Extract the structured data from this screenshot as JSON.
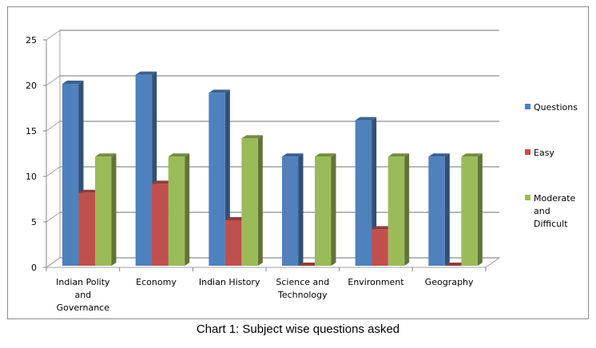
{
  "caption": "Chart 1: Subject wise questions asked",
  "chart_data": {
    "type": "bar",
    "title": "",
    "xlabel": "",
    "ylabel": "",
    "ylim": [
      0,
      25
    ],
    "yticks": [
      "0",
      "5",
      "10",
      "15",
      "20",
      "25"
    ],
    "grid": true,
    "legend_position": "right",
    "categories": [
      [
        "Indian Polity",
        "and",
        "Governance"
      ],
      [
        "Economy"
      ],
      [
        "Indian History"
      ],
      [
        "Science and",
        "Technology"
      ],
      [
        "Environment"
      ],
      [
        "Geography"
      ]
    ],
    "series": [
      {
        "name": "Questions",
        "color": "#4f81bd",
        "values": [
          20,
          21,
          19,
          12,
          16,
          12
        ]
      },
      {
        "name": "Easy",
        "color": "#c0504d",
        "values": [
          8,
          9,
          5,
          0,
          4,
          0
        ]
      },
      {
        "name": "Moderate and Difficult",
        "legend_lines": [
          "Moderate",
          "and",
          "Difficult"
        ],
        "color": "#9bbb59",
        "values": [
          12,
          12,
          14,
          12,
          12,
          12
        ]
      }
    ]
  }
}
